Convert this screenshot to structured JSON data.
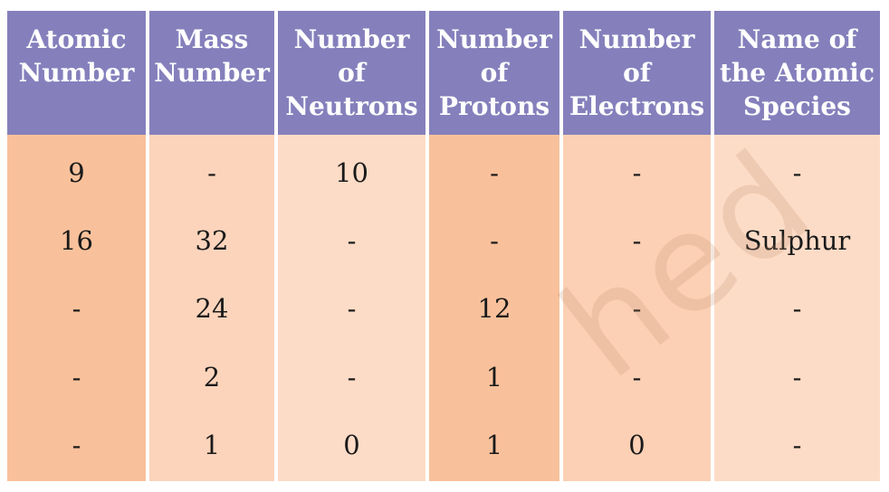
{
  "table": {
    "columns": [
      {
        "header_lines": [
          "Atomic",
          "Number"
        ],
        "body_color": "#f9c19b"
      },
      {
        "header_lines": [
          "Mass",
          "Number"
        ],
        "body_color": "#fbd4bb"
      },
      {
        "header_lines": [
          "Number",
          "of",
          "Neutrons"
        ],
        "body_color": "#fddcc7"
      },
      {
        "header_lines": [
          "Number",
          "of",
          "Protons"
        ],
        "body_color": "#f9c19b"
      },
      {
        "header_lines": [
          "Number",
          "of",
          "Electrons"
        ],
        "body_color": "#fbd0b4"
      },
      {
        "header_lines": [
          "Name of",
          "the Atomic",
          "Species"
        ],
        "body_color": "#fddcc7"
      }
    ],
    "rows": [
      [
        "9",
        "-",
        "10",
        "-",
        "-",
        "-"
      ],
      [
        "16",
        "32",
        "-",
        "-",
        "-",
        "Sulphur"
      ],
      [
        "-",
        "24",
        "-",
        "12",
        "-",
        "-"
      ],
      [
        "-",
        "2",
        "-",
        "1",
        "-",
        "-"
      ],
      [
        "-",
        "1",
        "0",
        "1",
        "0",
        "-"
      ]
    ]
  },
  "watermark": {
    "text": "hed"
  },
  "colors": {
    "header_bg": "#8580bc",
    "header_text": "#ffffff"
  }
}
